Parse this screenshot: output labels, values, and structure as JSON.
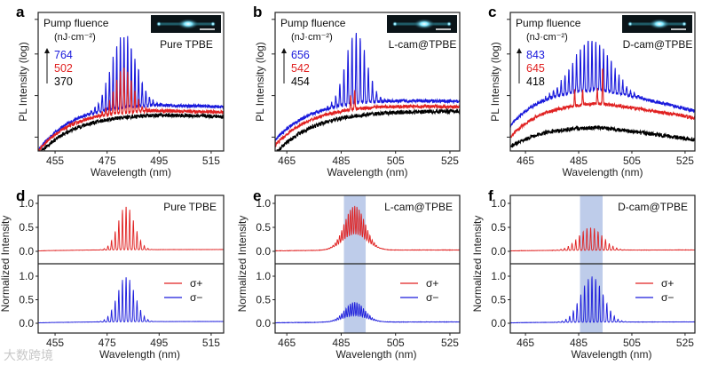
{
  "figure": {
    "watermark": "大数跨境",
    "legend_sigma_plus": "σ+",
    "legend_sigma_minus": "σ−"
  },
  "chart_data": [
    {
      "panel": "a",
      "type": "line",
      "title": "Pure TPBE",
      "xlabel": "Wavelength (nm)",
      "ylabel": "PL Intensity (log)",
      "xlim": [
        448.5,
        519.8
      ],
      "ylim": [
        0,
        1
      ],
      "xticks": [
        455,
        475,
        495,
        515
      ],
      "yscale": "log (arbitrary units, normalized)",
      "legend_title": "Pump fluence",
      "legend_unit": "(nJ·cm⁻²)",
      "series": [
        {
          "name": "764",
          "color": "#1a1adc",
          "start": 0.0,
          "plateau": 0.34,
          "rise": 13,
          "tail": 0.02,
          "noise": 0.012,
          "modes": {
            "center": 481.5,
            "sigma": 4.8,
            "spacing": 1.4,
            "peak": 0.84
          }
        },
        {
          "name": "502",
          "color": "#e02020",
          "start": 0.0,
          "plateau": 0.3,
          "rise": 13,
          "tail": 0.02,
          "noise": 0.012,
          "modes": {
            "center": 481.5,
            "sigma": 3.5,
            "spacing": 1.4,
            "peak": 0.6
          }
        },
        {
          "name": "370",
          "color": "#000000",
          "start": -0.03,
          "plateau": 0.27,
          "rise": 14,
          "tail": 0.02,
          "noise": 0.014
        }
      ]
    },
    {
      "panel": "b",
      "type": "line",
      "title": "L-cam@TPBE",
      "xlabel": "Wavelength (nm)",
      "ylabel": "PL Intensity (log)",
      "xlim": [
        460.7,
        528.6
      ],
      "ylim": [
        0,
        1
      ],
      "xticks": [
        465,
        485,
        505,
        525
      ],
      "legend_title": "Pump fluence",
      "legend_unit": "(nJ·cm⁻²)",
      "series": [
        {
          "name": "656",
          "color": "#1a1adc",
          "start": 0.08,
          "plateau": 0.38,
          "rise": 14,
          "tail": 0.02,
          "noise": 0.012,
          "modes": {
            "center": 490.5,
            "sigma": 3.8,
            "spacing": 1.5,
            "peak": 0.86
          }
        },
        {
          "name": "542",
          "color": "#e02020",
          "start": 0.04,
          "plateau": 0.34,
          "rise": 14,
          "tail": 0.02,
          "noise": 0.012,
          "spikes": [
            [
              488.5,
              0.4
            ],
            [
              490,
              0.44
            ]
          ]
        },
        {
          "name": "454",
          "color": "#000000",
          "start": -0.02,
          "plateau": 0.29,
          "rise": 14,
          "tail": 0.0,
          "noise": 0.015
        }
      ]
    },
    {
      "panel": "c",
      "type": "line",
      "title": "D-cam@TPBE",
      "xlabel": "Wavelength (nm)",
      "ylabel": "PL Intensity (log)",
      "xlim": [
        459.3,
        528.7
      ],
      "ylim": [
        0,
        1
      ],
      "xticks": [
        465,
        485,
        505,
        525
      ],
      "legend_title": "Pump fluence",
      "legend_unit": "(nJ·cm⁻²)",
      "series": [
        {
          "name": "843",
          "color": "#1a1adc",
          "start": 0.18,
          "plateau": 0.46,
          "rise": 12,
          "tail": 0.17,
          "noise": 0.012,
          "modes": {
            "center": 490,
            "sigma": 7,
            "spacing": 1.45,
            "peak": 0.8
          }
        },
        {
          "name": "645",
          "color": "#e02020",
          "start": 0.1,
          "plateau": 0.36,
          "rise": 12,
          "tail": 0.12,
          "noise": 0.012,
          "spikes": [
            [
              483.5,
              0.44
            ],
            [
              486.5,
              0.45
            ],
            [
              492,
              0.45
            ],
            [
              494,
              0.6
            ]
          ]
        },
        {
          "name": "418",
          "color": "#000000",
          "start": 0.03,
          "plateau": 0.18,
          "rise": 12,
          "tail": 0.1,
          "noise": 0.014
        }
      ]
    },
    {
      "panel": "d",
      "type": "line",
      "title": "Pure TPBE",
      "xlabel": "Wavelength (nm)",
      "ylabel": "Normalized Intensity",
      "xlim": [
        448.5,
        519.8
      ],
      "ylim": [
        -0.2,
        1.2
      ],
      "xticks": [
        455,
        475,
        495,
        515
      ],
      "yticks": [
        0.0,
        0.5,
        1.0
      ],
      "series": [
        {
          "name": "σ+",
          "color": "#e02020",
          "subplot": "top",
          "start": 0.01,
          "plateau": 0.04,
          "rise": 25,
          "tail": 0,
          "noise": 0.002,
          "modes": {
            "center": 482.3,
            "sigma": 3.2,
            "spacing": 1.4,
            "peak": 0.95
          }
        },
        {
          "name": "σ−",
          "color": "#1a1adc",
          "subplot": "bottom",
          "start": 0.01,
          "plateau": 0.04,
          "rise": 25,
          "tail": 0,
          "noise": 0.002,
          "modes": {
            "center": 482.3,
            "sigma": 3.4,
            "spacing": 1.4,
            "peak": 1.0
          }
        }
      ]
    },
    {
      "panel": "e",
      "type": "line",
      "title": "L-cam@TPBE",
      "xlabel": "Wavelength (nm)",
      "ylabel": "Normalized Intensity",
      "xlim": [
        460.7,
        528.6
      ],
      "ylim": [
        -0.2,
        1.2
      ],
      "xticks": [
        465,
        485,
        505,
        525
      ],
      "yticks": [
        0.0,
        0.5,
        1.0
      ],
      "highlight_nm": [
        486,
        494
      ],
      "highlight_color": "#b3c3e6",
      "series": [
        {
          "name": "σ+",
          "color": "#e02020",
          "subplot": "top",
          "start": 0.01,
          "plateau": 0.03,
          "rise": 25,
          "tail": 0,
          "noise": 0.004,
          "hump": {
            "center": 490,
            "sigma": 4.5,
            "amp": 0.3
          },
          "modes": {
            "center": 490,
            "sigma": 3.2,
            "spacing": 0.8,
            "peak": 0.95
          }
        },
        {
          "name": "σ−",
          "color": "#1a1adc",
          "subplot": "bottom",
          "start": 0.01,
          "plateau": 0.03,
          "rise": 25,
          "tail": 0,
          "noise": 0.004,
          "hump": {
            "center": 490,
            "sigma": 4.5,
            "amp": 0.12
          },
          "modes": {
            "center": 490,
            "sigma": 3.2,
            "spacing": 0.8,
            "peak": 0.45
          }
        }
      ]
    },
    {
      "panel": "f",
      "type": "line",
      "title": "D-cam@TPBE",
      "xlabel": "Wavelength (nm)",
      "ylabel": "Normalized Intensity",
      "xlim": [
        459.3,
        528.7
      ],
      "ylim": [
        -0.2,
        1.2
      ],
      "xticks": [
        465,
        485,
        505,
        525
      ],
      "yticks": [
        0.0,
        0.5,
        1.0
      ],
      "highlight_nm": [
        485.5,
        494
      ],
      "highlight_color": "#b3c3e6",
      "series": [
        {
          "name": "σ+",
          "color": "#e02020",
          "subplot": "top",
          "start": 0.01,
          "plateau": 0.03,
          "rise": 25,
          "tail": 0,
          "noise": 0.003,
          "modes": {
            "center": 489.5,
            "sigma": 4.5,
            "spacing": 1.4,
            "peak": 0.5
          }
        },
        {
          "name": "σ−",
          "color": "#1a1adc",
          "subplot": "bottom",
          "start": 0.01,
          "plateau": 0.03,
          "rise": 25,
          "tail": 0,
          "noise": 0.003,
          "modes": {
            "center": 490,
            "sigma": 4.2,
            "spacing": 1.4,
            "peak": 1.0
          }
        }
      ]
    }
  ]
}
